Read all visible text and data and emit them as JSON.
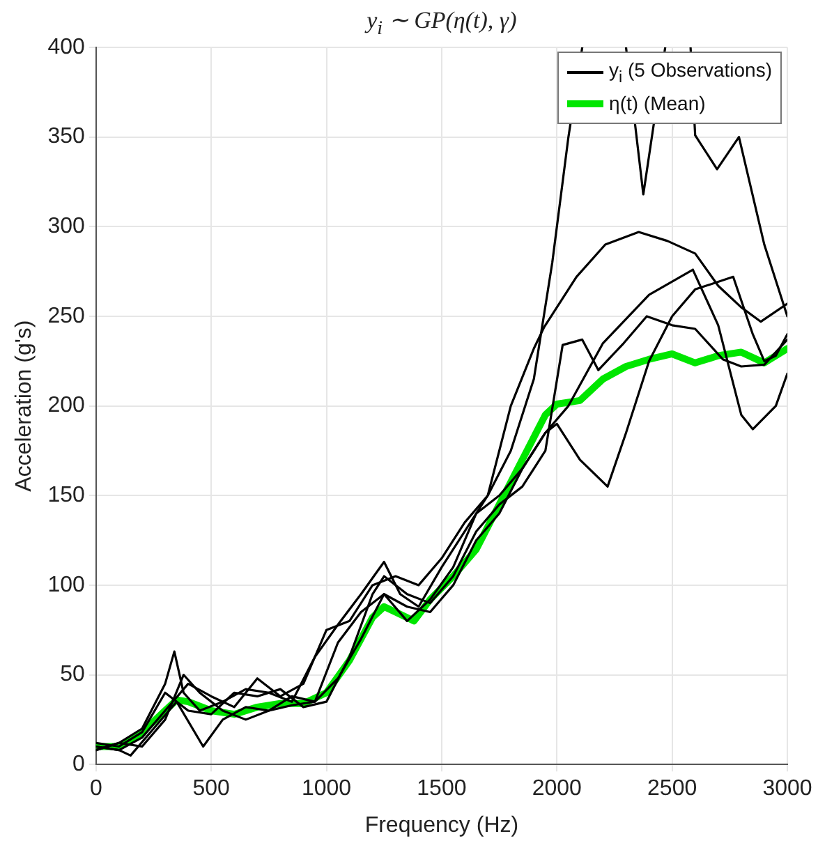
{
  "chart_data": {
    "type": "line",
    "title": "y$_{i}$ ∼ GP(η(t), γ)",
    "xlabel": "Frequency (Hz)",
    "ylabel": "Acceleration (g's)",
    "xlim": [
      0,
      3000
    ],
    "xticks": [
      0,
      500,
      1000,
      1500,
      2000,
      2500,
      3000
    ],
    "ylim": [
      0,
      400
    ],
    "yticks": [
      0,
      50,
      100,
      150,
      200,
      250,
      300,
      350,
      400
    ],
    "grid": true,
    "legend": "top right",
    "marker": "none",
    "line_style": "solid",
    "series": [
      {
        "name": "y$_{i}$ (5 Observations)",
        "color": "#000000",
        "x": [
          0,
          100,
          200,
          300,
          340,
          380,
          450,
          550,
          650,
          750,
          850,
          950,
          1050,
          1150,
          1250,
          1320,
          1400,
          1500,
          1600,
          1700,
          1800,
          1900,
          1980,
          2050,
          2110,
          2200,
          2300,
          2375,
          2470,
          2530,
          2580,
          2600,
          2695,
          2790,
          2900,
          3000
        ],
        "values": [
          8,
          12,
          20,
          45,
          63,
          40,
          30,
          35,
          42,
          40,
          35,
          60,
          78,
          95,
          113,
          95,
          88,
          110,
          130,
          150,
          175,
          215,
          280,
          350,
          400,
          null,
          400,
          318,
          400,
          null,
          400,
          351,
          332,
          350,
          290,
          250
        ]
      },
      {
        "color": "#000000",
        "x": [
          0,
          100,
          200,
          300,
          400,
          500,
          600,
          700,
          800,
          900,
          1000,
          1100,
          1200,
          1300,
          1400,
          1500,
          1600,
          1700,
          1800,
          1900,
          1945,
          2085,
          2210,
          2355,
          2480,
          2600,
          2700,
          2800,
          2885,
          3000
        ],
        "values": [
          10,
          8,
          15,
          30,
          45,
          38,
          32,
          48,
          38,
          45,
          75,
          80,
          100,
          105,
          100,
          115,
          135,
          150,
          200,
          232,
          244,
          272,
          290,
          297,
          292,
          285,
          267,
          255,
          247,
          257
        ]
      },
      {
        "color": "#000000",
        "x": [
          0,
          100,
          200,
          300,
          380,
          450,
          550,
          650,
          750,
          850,
          950,
          1050,
          1150,
          1250,
          1350,
          1450,
          1550,
          1650,
          1750,
          1850,
          1950,
          2050,
          2200,
          2400,
          2590,
          2700,
          2800,
          2850,
          2950,
          3000
        ],
        "values": [
          8,
          12,
          10,
          25,
          50,
          40,
          30,
          25,
          30,
          38,
          35,
          68,
          85,
          95,
          80,
          92,
          110,
          140,
          150,
          165,
          185,
          200,
          235,
          262,
          276,
          245,
          195,
          187,
          200,
          218
        ]
      },
      {
        "color": "#000000",
        "x": [
          0,
          100,
          150,
          250,
          350,
          465,
          550,
          650,
          750,
          850,
          950,
          1050,
          1150,
          1250,
          1350,
          1450,
          1550,
          1650,
          1750,
          1850,
          1950,
          2000,
          2100,
          2220,
          2300,
          2400,
          2500,
          2600,
          2765,
          2850,
          2900,
          2950,
          3000
        ],
        "values": [
          10,
          8,
          5,
          20,
          35,
          10,
          25,
          32,
          30,
          33,
          35,
          48,
          70,
          95,
          88,
          85,
          100,
          125,
          140,
          165,
          185,
          190,
          170,
          155,
          185,
          225,
          250,
          265,
          272,
          240,
          225,
          228,
          240
        ]
      },
      {
        "color": "#000000",
        "x": [
          0,
          100,
          200,
          300,
          400,
          500,
          600,
          700,
          800,
          900,
          1000,
          1100,
          1200,
          1250,
          1350,
          1450,
          1550,
          1650,
          1750,
          1850,
          1950,
          2025,
          2110,
          2180,
          2290,
          2390,
          2500,
          2600,
          2720,
          2800,
          2900,
          3000
        ],
        "values": [
          12,
          10,
          18,
          40,
          30,
          28,
          40,
          38,
          42,
          32,
          35,
          60,
          95,
          105,
          95,
          90,
          105,
          130,
          145,
          155,
          175,
          234,
          237,
          220,
          235,
          250,
          245,
          243,
          226,
          222,
          223,
          237
        ]
      },
      {
        "name": "η(t) (Mean)",
        "color": "#00e600",
        "x": [
          0,
          100,
          200,
          300,
          350,
          400,
          500,
          600,
          700,
          800,
          900,
          1000,
          1100,
          1200,
          1250,
          1300,
          1380,
          1450,
          1550,
          1650,
          1750,
          1850,
          1950,
          2000,
          2100,
          2200,
          2300,
          2400,
          2500,
          2600,
          2700,
          2800,
          2900,
          3000
        ],
        "values": [
          10,
          10,
          18,
          30,
          36,
          35,
          30,
          28,
          32,
          34,
          34,
          40,
          58,
          82,
          88,
          85,
          80,
          92,
          105,
          120,
          145,
          170,
          195,
          201,
          203,
          215,
          222,
          226,
          229,
          224,
          228,
          230,
          224,
          232
        ]
      }
    ]
  }
}
